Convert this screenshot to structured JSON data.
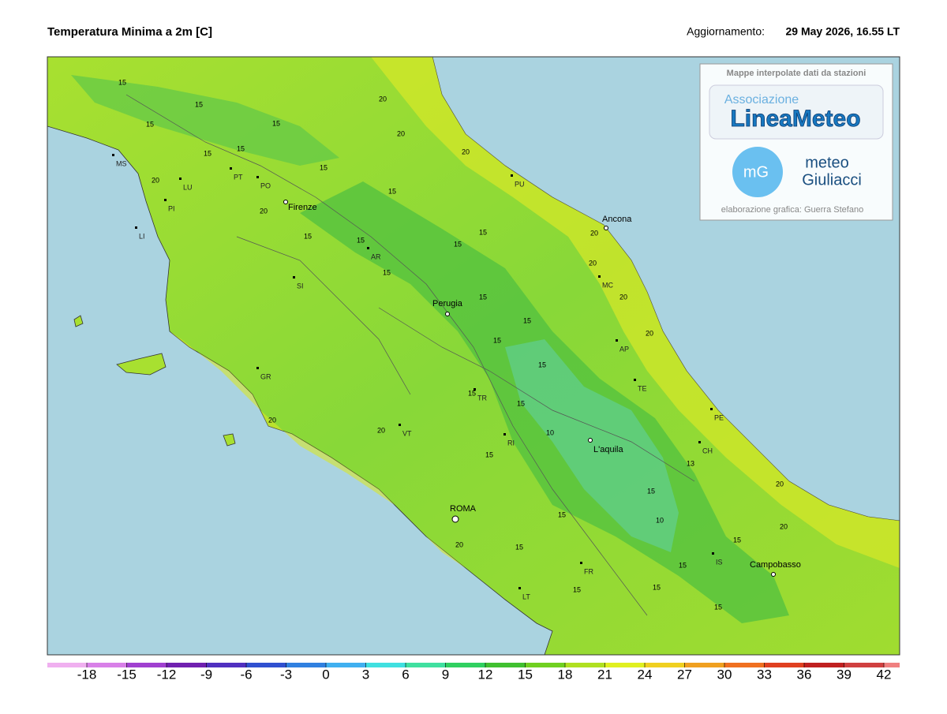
{
  "header": {
    "title": "Temperatura Minima a 2m [C]",
    "update_label": "Aggiornamento:",
    "update_time": "29 May 2026, 16.55 LT"
  },
  "map": {
    "cities": [
      "Firenze",
      "Ancona",
      "Perugia",
      "L'aquila",
      "ROMA",
      "Campobasso"
    ],
    "provinces": [
      "MS",
      "LU",
      "PT",
      "PO",
      "PI",
      "LI",
      "AR",
      "SI",
      "GR",
      "PU",
      "MC",
      "AP",
      "TE",
      "PE",
      "CH",
      "TR",
      "VT",
      "RI",
      "FR",
      "LT",
      "IS"
    ],
    "contour_labels": [
      "20",
      "15",
      "15",
      "15",
      "15",
      "15",
      "15",
      "20",
      "20",
      "15",
      "20",
      "20",
      "15",
      "15",
      "15",
      "15",
      "15",
      "15",
      "20",
      "20",
      "20",
      "15",
      "15",
      "15",
      "20",
      "15",
      "15",
      "15",
      "20",
      "20",
      "15",
      "10",
      "15",
      "20",
      "13",
      "15",
      "10",
      "20",
      "15",
      "15",
      "20",
      "15",
      "15",
      "15",
      "15"
    ]
  },
  "credits": {
    "caption": "Mappe interpolate dati da stazioni",
    "assoc": "Associazione",
    "linea": "LineaMeteo",
    "mg": "mG",
    "meteo": "meteo",
    "giuliacci": "Giuliacci",
    "author": "elaborazione grafica: Guerra Stefano"
  },
  "legend": {
    "ticks": [
      -18,
      -15,
      -12,
      -9,
      -6,
      -3,
      0,
      3,
      6,
      9,
      12,
      15,
      18,
      21,
      24,
      27,
      30,
      33,
      36,
      39,
      42
    ],
    "colors": [
      "#f0b0f0",
      "#d880e8",
      "#a040d0",
      "#7020b0",
      "#5030c0",
      "#3050d0",
      "#3080e0",
      "#40b0f0",
      "#40e0e0",
      "#40e0a0",
      "#30d060",
      "#40c030",
      "#70d020",
      "#b0e020",
      "#e0f020",
      "#f0d020",
      "#f0a020",
      "#f07020",
      "#e04020",
      "#c02020",
      "#d04040",
      "#f08080"
    ]
  }
}
